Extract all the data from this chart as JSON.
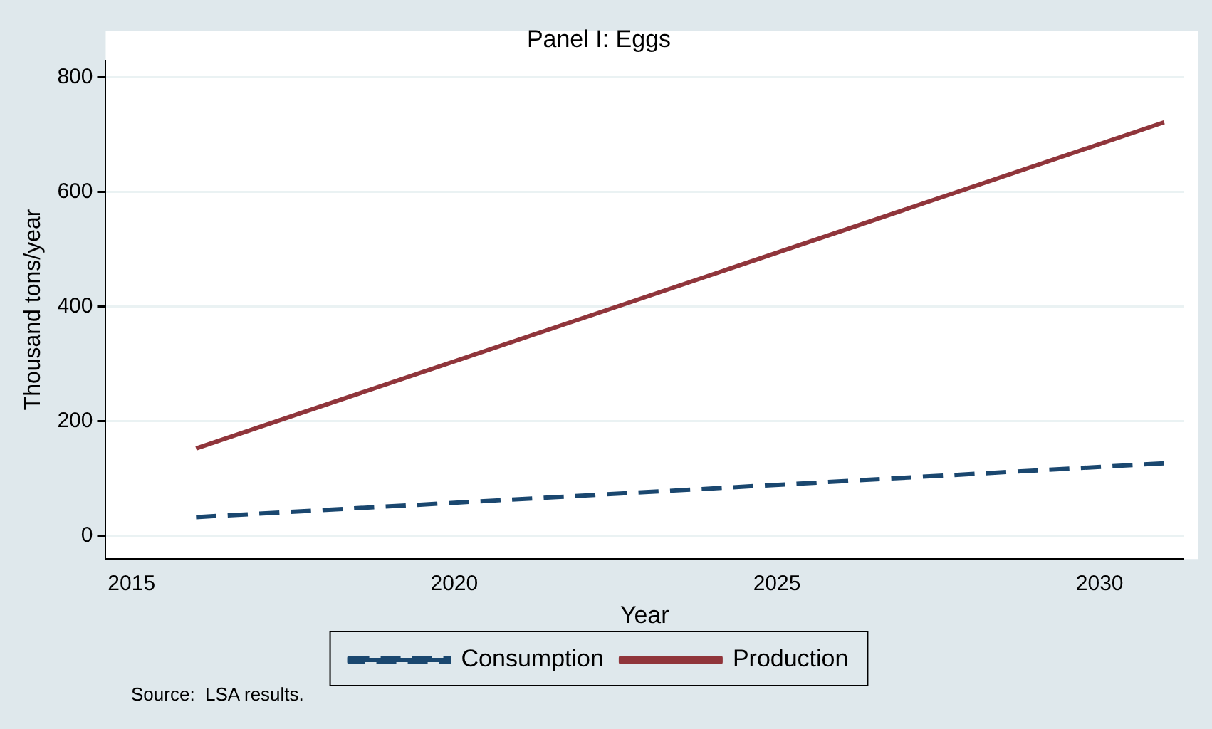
{
  "chart_data": {
    "type": "line",
    "title": "Panel I: Eggs",
    "xlabel": "Year",
    "ylabel": "Thousand tons/year",
    "x": [
      2016,
      2031
    ],
    "series": [
      {
        "name": "Consumption",
        "color": "#1a476f",
        "values": [
          33,
          127
        ],
        "line_style": "dashed"
      },
      {
        "name": "Production",
        "color": "#90353b",
        "values": [
          153,
          722
        ],
        "line_style": "solid"
      }
    ],
    "xlim": [
      2014.6,
      2031.3
    ],
    "xticks": [
      2015,
      2020,
      2025,
      2030
    ],
    "ylim": [
      -40,
      830
    ],
    "yticks": [
      0,
      200,
      400,
      600,
      800
    ],
    "grid": "y",
    "legend": "bottom",
    "marker": "none",
    "annotations": [
      "Source:  LSA results."
    ]
  }
}
